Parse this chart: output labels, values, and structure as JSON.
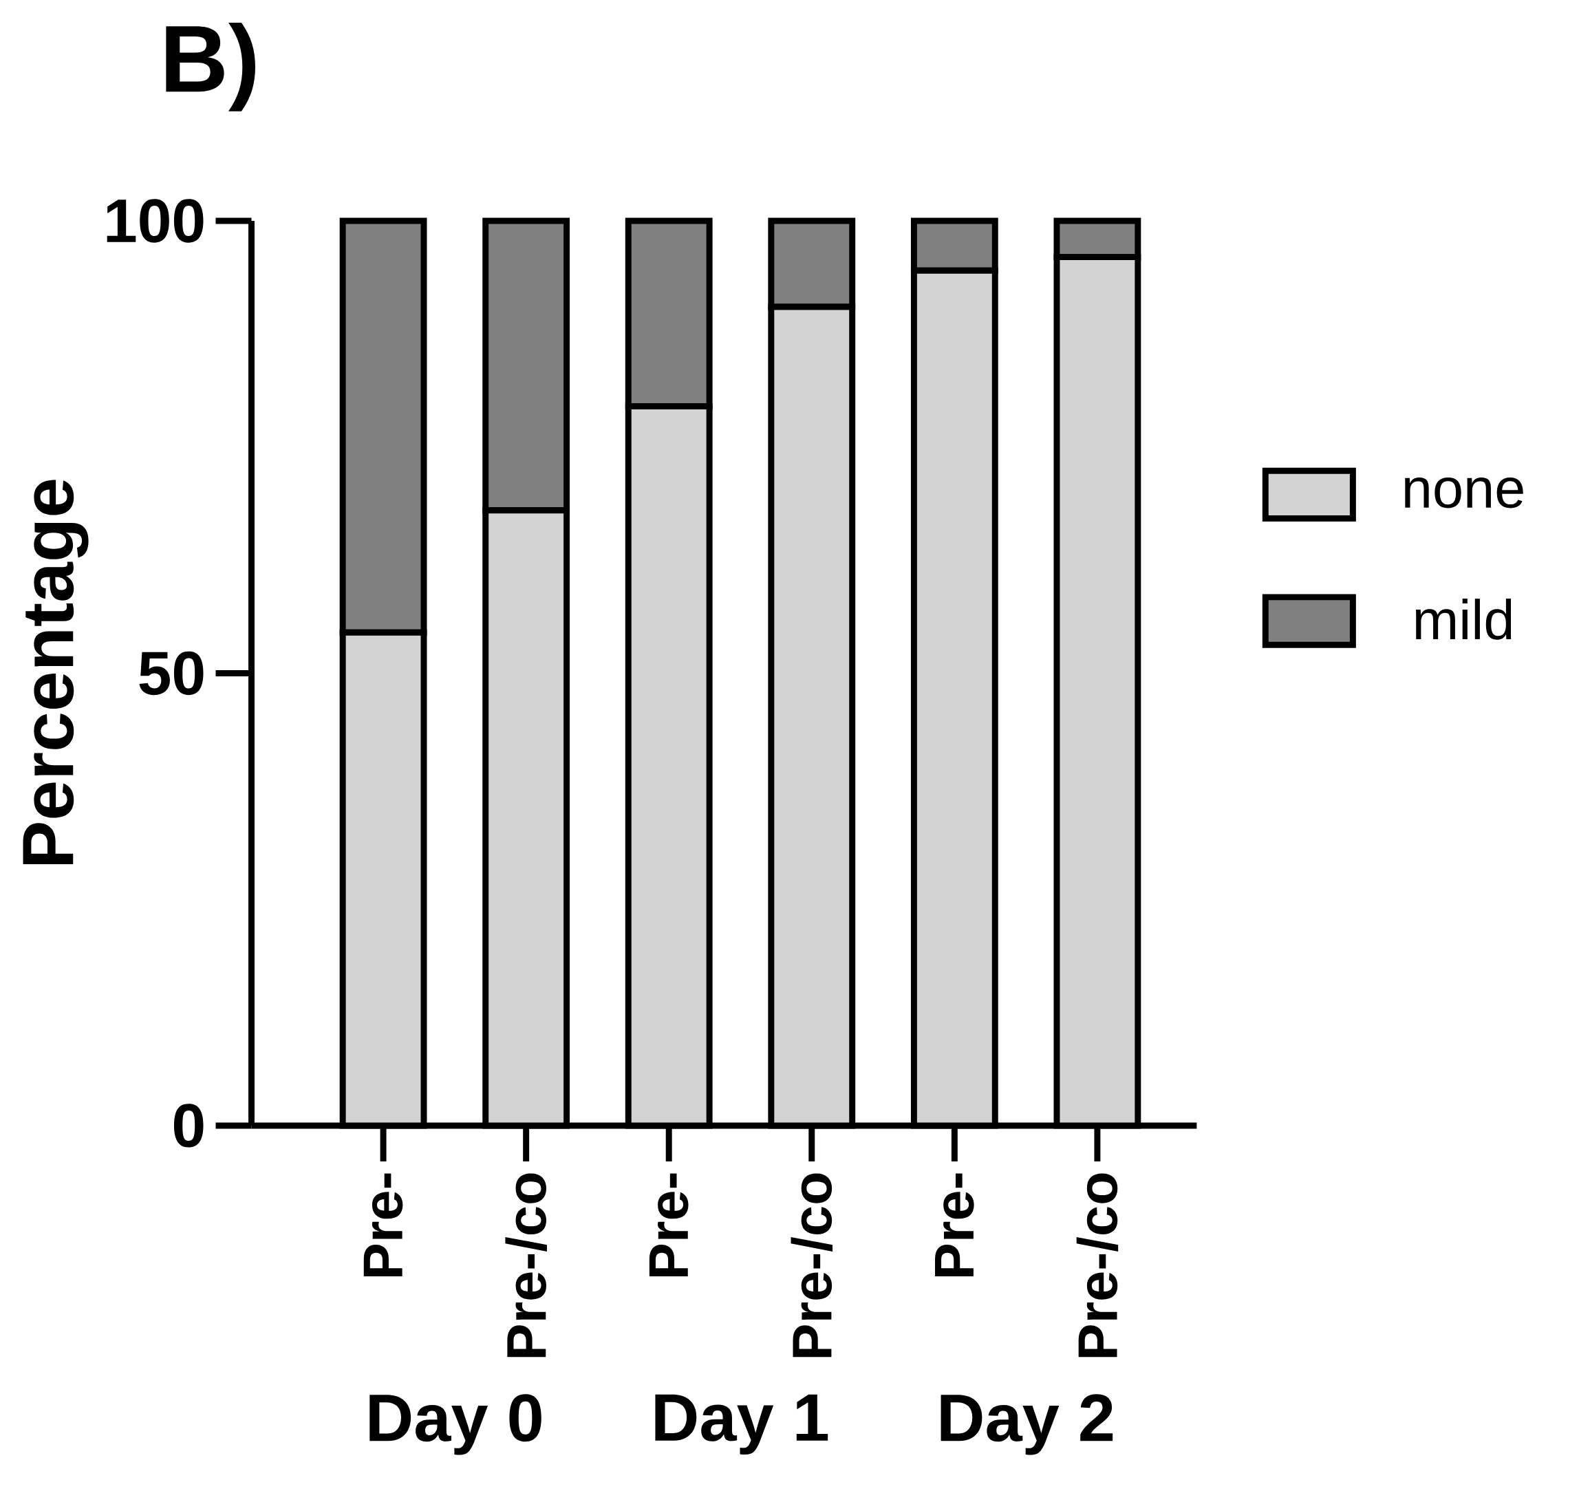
{
  "chart_data": {
    "type": "bar",
    "title": "B)",
    "ylabel": "Percentage",
    "stacked": true,
    "legend": "right",
    "categories": [
      "Pre-",
      "Pre-/co",
      "Pre-",
      "Pre-/co",
      "Pre-",
      "Pre-/co"
    ],
    "series": [
      {
        "name": "none",
        "color": "#d3d3d3",
        "values": [
          54.5,
          68,
          79.5,
          90.5,
          94.5,
          96
        ]
      },
      {
        "name": "mild",
        "color": "#808080",
        "values": [
          45.5,
          32,
          20.5,
          9.5,
          5.5,
          4
        ]
      }
    ],
    "ylim": [
      0,
      100
    ],
    "yticks": [
      0,
      50,
      100
    ],
    "annotations": [
      "Day 0",
      "Day 1",
      "Day 2"
    ]
  }
}
